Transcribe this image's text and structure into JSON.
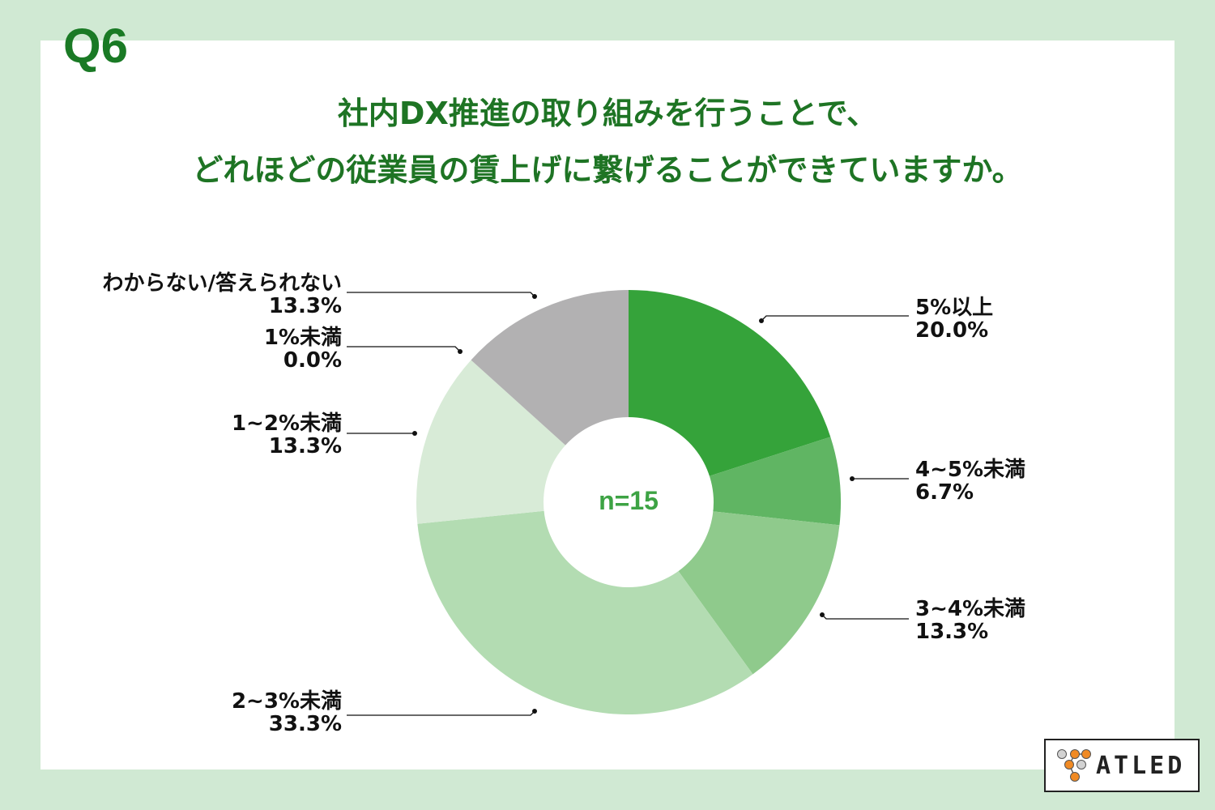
{
  "question_number": "Q6",
  "title": {
    "line1": "社内DX推進の取り組みを行うことで、",
    "line2": "どれほどの従業員の賃上げに繋げることができていますか。"
  },
  "center_label": "n=15",
  "labels": [
    {
      "name": "5%以上",
      "value": "20.0%"
    },
    {
      "name": "4~5%未満",
      "value": "6.7%"
    },
    {
      "name": "3~4%未満",
      "value": "13.3%"
    },
    {
      "name": "2~3%未満",
      "value": "33.3%"
    },
    {
      "name": "1~2%未満",
      "value": "13.3%"
    },
    {
      "name": "1%未満",
      "value": "0.0%"
    },
    {
      "name": "わからない/答えられない",
      "value": "13.3%"
    }
  ],
  "logo": {
    "text": "ATLED"
  },
  "colors": {
    "background": "#d0e9d3",
    "title": "#1e7424",
    "slice_5plus": "#35a33a",
    "slice_4_5": "#60b563",
    "slice_3_4": "#8fca8c",
    "slice_2_3": "#b3dcb2",
    "slice_1_2": "#d8ebd7",
    "slice_unknown": "#b2b1b2"
  },
  "chart_data": {
    "type": "pie",
    "subtype": "donut",
    "title": "社内DX推進の取り組みを行うことで、どれほどの従業員の賃上げに繋げることができていますか。",
    "categories": [
      "5%以上",
      "4~5%未満",
      "3~4%未満",
      "2~3%未満",
      "1~2%未満",
      "1%未満",
      "わからない/答えられない"
    ],
    "values": [
      20.0,
      6.7,
      13.3,
      33.3,
      13.3,
      0.0,
      13.3
    ],
    "unit": "%",
    "sample_size": 15,
    "center_text": "n=15",
    "start_angle": "12 o'clock",
    "direction": "clockwise",
    "legend": "callout labels with leader lines"
  }
}
